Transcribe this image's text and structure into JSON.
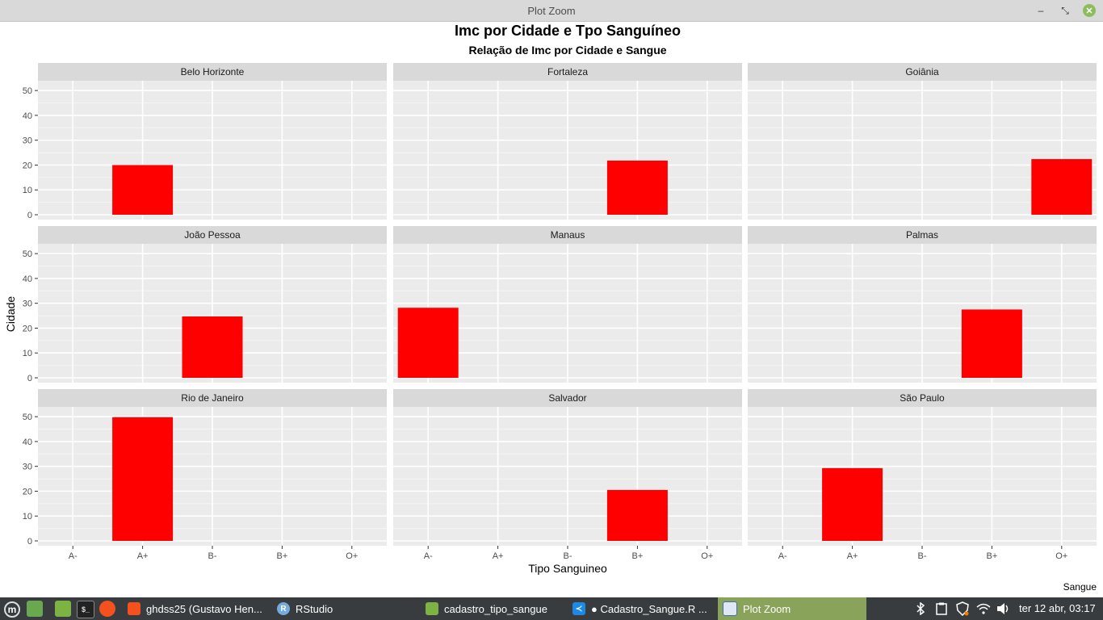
{
  "window": {
    "title": "Plot Zoom"
  },
  "chart_data": {
    "type": "bar",
    "title": "Imc por Cidade e Tpo Sanguíneo",
    "subtitle": "Relação de Imc por Cidade e Sangue",
    "xlabel": "Tipo Sanguineo",
    "ylabel": "Cidade",
    "caption": "Sangue",
    "categories": [
      "A-",
      "A+",
      "B-",
      "B+",
      "O+"
    ],
    "ylim": [
      0,
      52
    ],
    "yticks": [
      0,
      10,
      20,
      30,
      40,
      50
    ],
    "bar_color": "#ff0000",
    "panel_bg": "#ebebeb",
    "strip_bg": "#d9d9d9",
    "grid": true,
    "facets": [
      {
        "name": "Belo Horizonte",
        "category": "A+",
        "value": 20
      },
      {
        "name": "Fortaleza",
        "category": "B+",
        "value": 21.8
      },
      {
        "name": "Goiânia",
        "category": "O+",
        "value": 22.4
      },
      {
        "name": "João Pessoa",
        "category": "B-",
        "value": 24.7
      },
      {
        "name": "Manaus",
        "category": "A-",
        "value": 28.2
      },
      {
        "name": "Palmas",
        "category": "B+",
        "value": 27.5
      },
      {
        "name": "Rio de Janeiro",
        "category": "A+",
        "value": 49.8
      },
      {
        "name": "Salvador",
        "category": "B+",
        "value": 20.5
      },
      {
        "name": "São Paulo",
        "category": "A+",
        "value": 29.3
      }
    ]
  },
  "taskbar": {
    "tasks": [
      {
        "label": "ghdss25 (Gustavo Hen...",
        "icon": "firefox-icon"
      },
      {
        "label": "RStudio",
        "icon": "rstudio-icon"
      },
      {
        "label": "cadastro_tipo_sangue",
        "icon": "folder-icon"
      },
      {
        "label": "● Cadastro_Sangue.R ...",
        "icon": "vscode-icon"
      },
      {
        "label": "Plot Zoom",
        "icon": "window-icon"
      }
    ],
    "clock": "ter 12 abr, 03:17"
  }
}
